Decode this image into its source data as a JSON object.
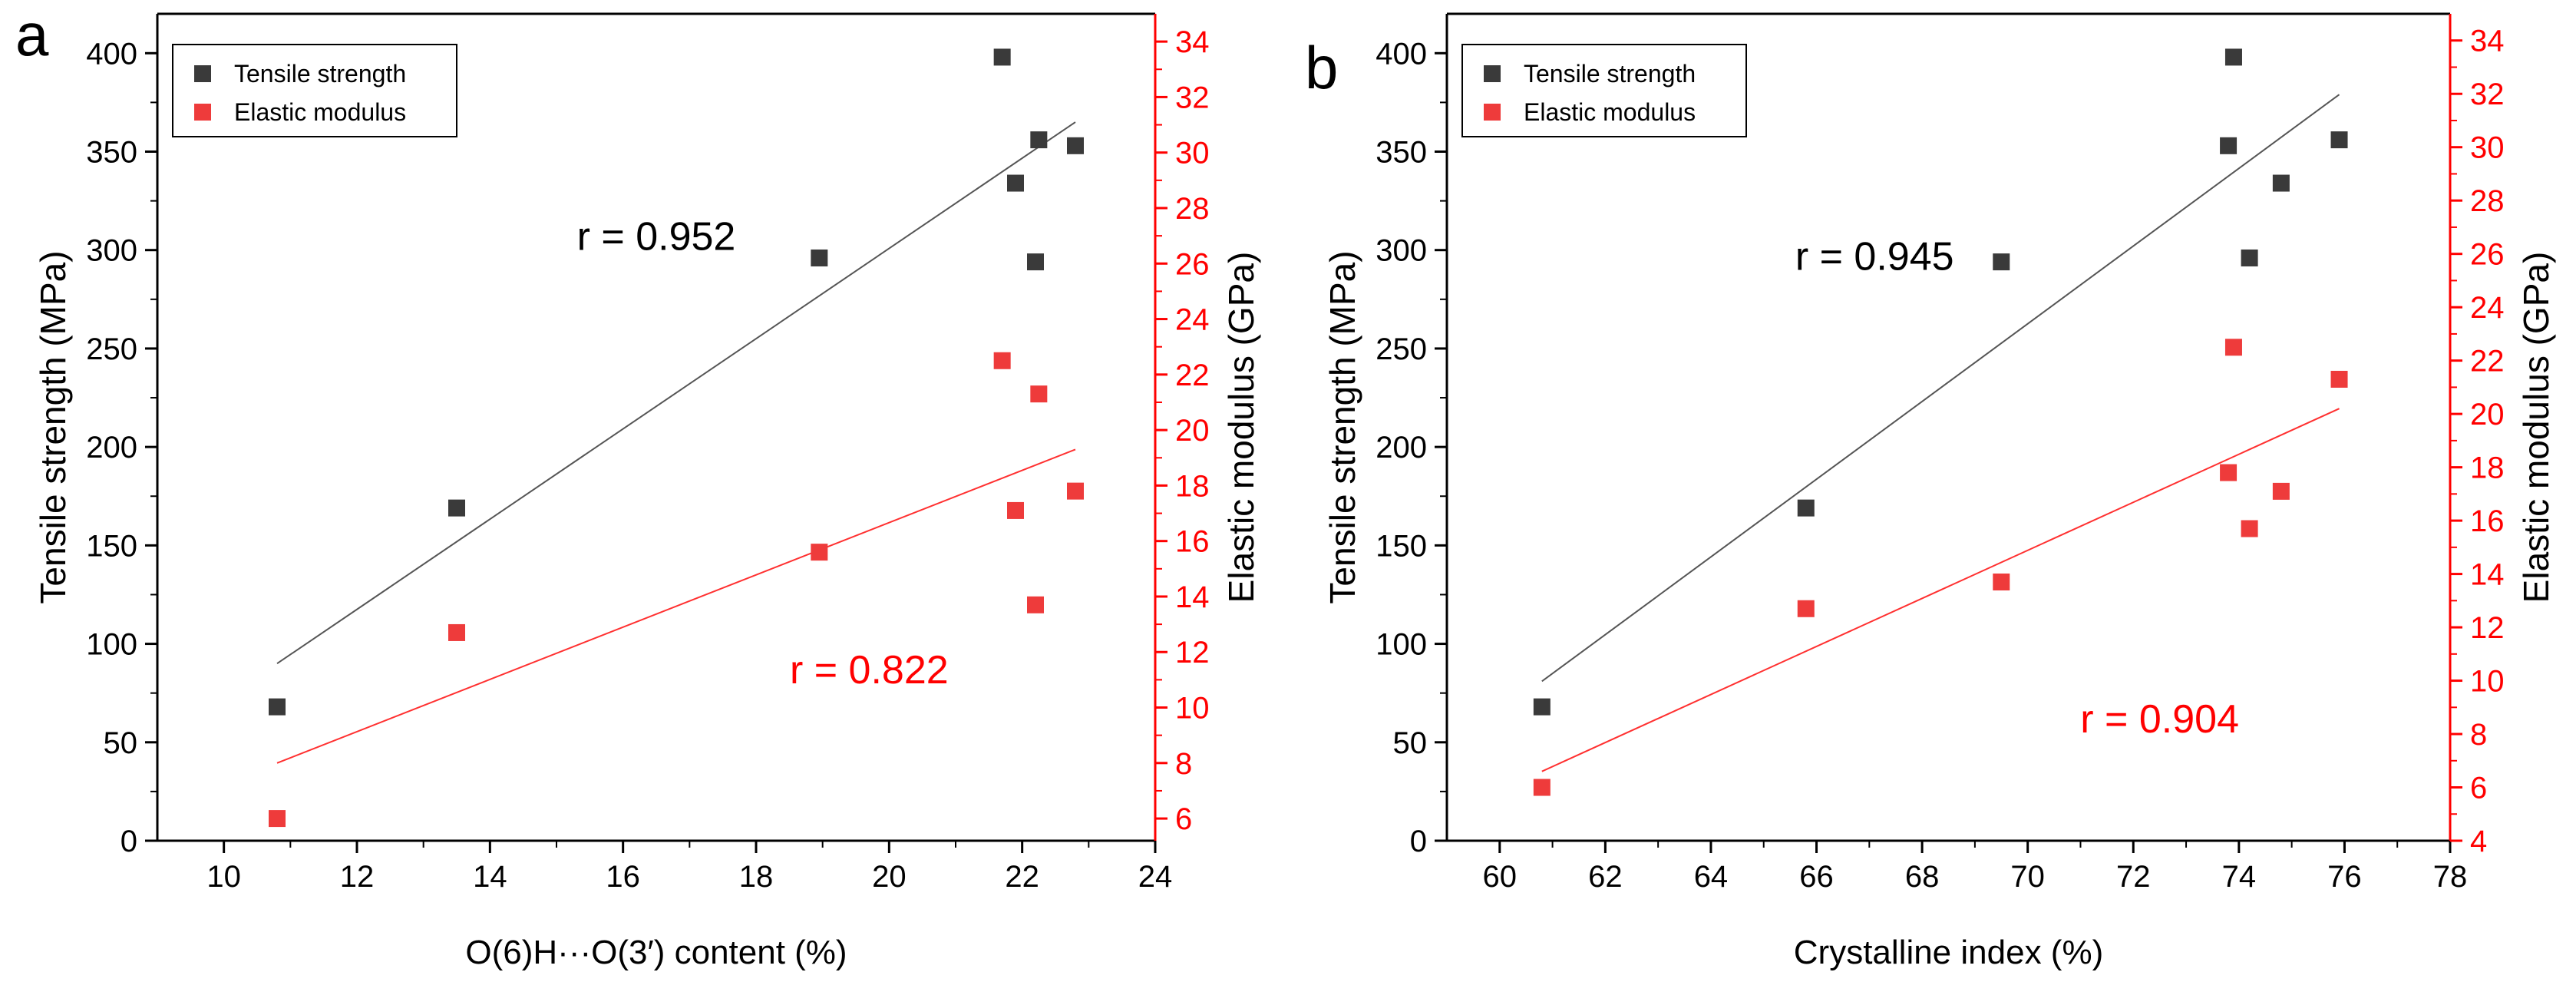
{
  "colors": {
    "left_axis": "#000000",
    "right_axis": "#ff0000",
    "tensile_marker": "#3a3a3a",
    "modulus_marker": "#ee3b3b",
    "tensile_fit": "#555555",
    "modulus_fit": "#ff3030"
  },
  "chart_data": [
    {
      "type": "scatter",
      "panel_label": "a",
      "xlabel": "O(6)H···O(3′) content (%)",
      "ylabel_left": "Tensile strength (MPa)",
      "ylabel_right": "Elastic modulus (GPa)",
      "xlim": [
        9,
        24
      ],
      "ylim_left": [
        0,
        420
      ],
      "ylim_right": [
        5.2,
        35
      ],
      "xticks": [
        10,
        12,
        14,
        16,
        18,
        20,
        22,
        24
      ],
      "yticks_left": [
        0,
        50,
        100,
        150,
        200,
        250,
        300,
        350,
        400
      ],
      "yticks_right": [
        6,
        8,
        10,
        12,
        14,
        16,
        18,
        20,
        22,
        24,
        26,
        28,
        30,
        32,
        34
      ],
      "legend": {
        "position": "top-left",
        "entries": [
          "Tensile strength",
          "Elastic modulus"
        ]
      },
      "series": [
        {
          "name": "Tensile strength",
          "axis": "left",
          "x": [
            10.8,
            13.5,
            18.95,
            21.7,
            21.9,
            22.2,
            22.25,
            22.8
          ],
          "y": [
            68,
            169,
            296,
            398,
            334,
            294,
            356,
            353
          ],
          "fit": {
            "x": [
              10.8,
              22.8
            ],
            "y": [
              90,
              365
            ]
          }
        },
        {
          "name": "Elastic modulus",
          "axis": "right",
          "x": [
            10.8,
            13.5,
            18.95,
            21.7,
            21.9,
            22.2,
            22.25,
            22.8
          ],
          "y": [
            6.0,
            12.7,
            15.6,
            22.5,
            17.1,
            13.7,
            21.3,
            17.8
          ],
          "fit": {
            "x": [
              10.8,
              22.8
            ],
            "y": [
              8.0,
              19.3
            ]
          }
        }
      ],
      "annotations": [
        {
          "text": "r = 0.952",
          "x": 16.5,
          "y": 300,
          "axis": "left",
          "color": "#000000"
        },
        {
          "text": "r = 0.822",
          "x": 19.7,
          "y": 80,
          "axis": "left",
          "color": "#ff0000"
        }
      ]
    },
    {
      "type": "scatter",
      "panel_label": "b",
      "xlabel": "Crystalline index (%)",
      "ylabel_left": "Tensile strength (MPa)",
      "ylabel_right": "Elastic modulus (GPa)",
      "xlim": [
        59,
        78
      ],
      "ylim_left": [
        0,
        420
      ],
      "ylim_right": [
        4,
        35
      ],
      "xticks": [
        60,
        62,
        64,
        66,
        68,
        70,
        72,
        74,
        76,
        78
      ],
      "yticks_left": [
        0,
        50,
        100,
        150,
        200,
        250,
        300,
        350,
        400
      ],
      "yticks_right": [
        4,
        6,
        8,
        10,
        12,
        14,
        16,
        18,
        20,
        22,
        24,
        26,
        28,
        30,
        32,
        34
      ],
      "legend": {
        "position": "top-left",
        "entries": [
          "Tensile strength",
          "Elastic modulus"
        ]
      },
      "series": [
        {
          "name": "Tensile strength",
          "axis": "left",
          "x": [
            60.8,
            65.8,
            69.5,
            73.8,
            73.9,
            74.2,
            74.8,
            75.9
          ],
          "y": [
            68,
            169,
            294,
            353,
            398,
            296,
            334,
            356
          ],
          "fit": {
            "x": [
              60.8,
              75.9
            ],
            "y": [
              81,
              379
            ]
          }
        },
        {
          "name": "Elastic modulus",
          "axis": "right",
          "x": [
            60.8,
            65.8,
            69.5,
            73.8,
            73.9,
            74.2,
            74.8,
            75.9
          ],
          "y": [
            6.0,
            12.7,
            13.7,
            17.8,
            22.5,
            15.7,
            17.1,
            21.3
          ],
          "fit": {
            "x": [
              60.8,
              75.9
            ],
            "y": [
              6.6,
              20.2
            ]
          }
        }
      ],
      "annotations": [
        {
          "text": "r = 0.945",
          "x": 67.1,
          "y": 290,
          "axis": "left",
          "color": "#000000"
        },
        {
          "text": "r = 0.904",
          "x": 72.5,
          "y": 55,
          "axis": "left",
          "color": "#ff0000"
        }
      ]
    }
  ]
}
